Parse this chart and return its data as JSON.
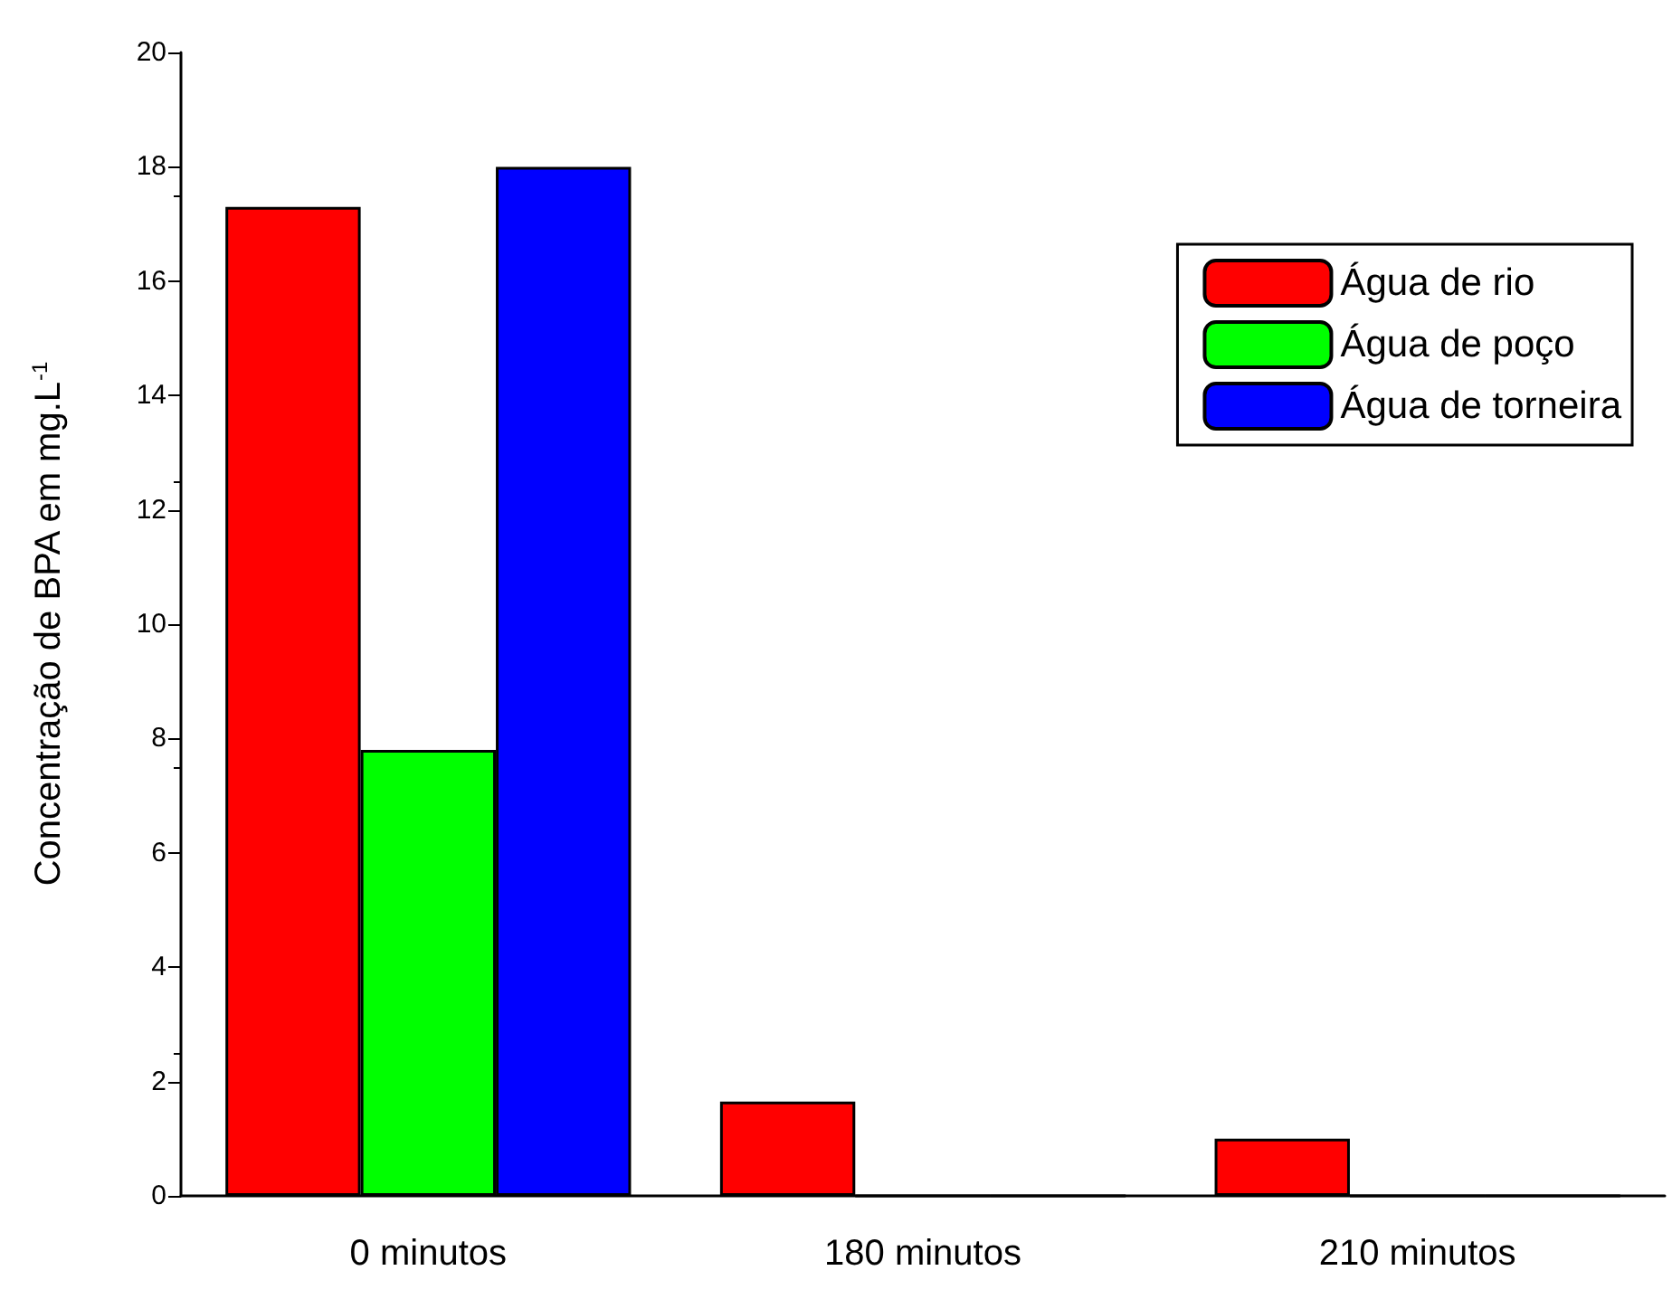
{
  "chart_data": {
    "type": "bar",
    "ylabel": "Concentração de BPA em mg.L$^{-1}$",
    "categories": [
      "0 minutos",
      "180 minutos",
      "210 minutos"
    ],
    "series": [
      {
        "name": "Água de rio",
        "color": "#ff0000",
        "values": [
          17.3,
          1.65,
          1.0
        ]
      },
      {
        "name": "Água de poço",
        "color": "#00ff00",
        "values": [
          7.8,
          0,
          0
        ]
      },
      {
        "name": "Água de torneira",
        "color": "#0000ff",
        "values": [
          18.0,
          0,
          0
        ]
      }
    ],
    "ylim": [
      0,
      20
    ],
    "yticks": [
      0,
      2,
      4,
      6,
      8,
      10,
      12,
      14,
      16,
      18,
      20
    ],
    "legend": "top right"
  }
}
